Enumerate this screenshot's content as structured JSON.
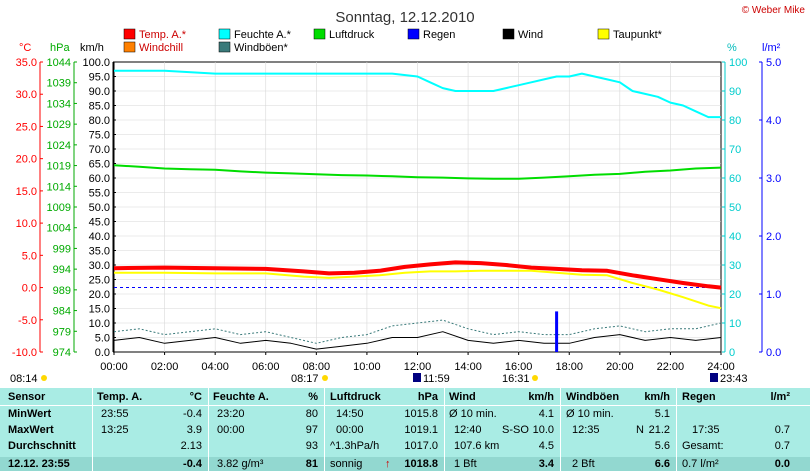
{
  "title": "Sonntag, 12.12.2010",
  "copyright": "© Weber Mike",
  "colors": {
    "temp": "#ff0000",
    "humidity": "#00ffff",
    "pressure": "#00dd00",
    "rain": "#0000ff",
    "wind": "#000000",
    "dewpoint": "#ffff00",
    "windchill": "#ff8000",
    "gust": "#3a7a7a",
    "table_bg": "#a9ece4",
    "plot_bg": "#ffffff",
    "sun": "#ffd800"
  },
  "legend": [
    {
      "key": "temp",
      "label": "Temp. A.*"
    },
    {
      "key": "humidity",
      "label": "Feuchte A.*"
    },
    {
      "key": "pressure",
      "label": "Luftdruck"
    },
    {
      "key": "rain",
      "label": "Regen"
    },
    {
      "key": "wind",
      "label": "Wind"
    },
    {
      "key": "dewpoint",
      "label": "Taupunkt*"
    },
    {
      "key": "windchill",
      "label": "Windchill"
    },
    {
      "key": "gust",
      "label": "Windböen*"
    }
  ],
  "axis_units": {
    "celsius": "°C",
    "hpa": "hPa",
    "kmh": "km/h",
    "percent": "%",
    "rain": "l/m²"
  },
  "sun_markers": {
    "sunrise_left": "08:14",
    "sunrise_axis": "08:17",
    "noon": "11:59",
    "sunset_axis": "16:31",
    "sunset_right": "23:43"
  },
  "chart_data": {
    "type": "line",
    "x_unit": "hours",
    "xlim": [
      0,
      24
    ],
    "x_ticks": [
      "00:00",
      "02:00",
      "04:00",
      "06:00",
      "08:00",
      "10:00",
      "12:00",
      "14:00",
      "16:00",
      "18:00",
      "20:00",
      "22:00",
      "24:00"
    ],
    "axes": {
      "celsius": {
        "ticks": [
          "35.0",
          "30.0",
          "25.0",
          "20.0",
          "15.0",
          "10.0",
          "5.0",
          "0.0",
          "-5.0",
          "-10.0"
        ],
        "ylim": [
          -10,
          35
        ]
      },
      "hpa": {
        "ticks": [
          "1044",
          "1039",
          "1034",
          "1029",
          "1024",
          "1019",
          "1014",
          "1009",
          "1004",
          "999",
          "994",
          "989",
          "984",
          "979",
          "974"
        ],
        "ylim": [
          974,
          1044
        ]
      },
      "kmh": {
        "ticks": [
          "100.0",
          "95.0",
          "90.0",
          "85.0",
          "80.0",
          "75.0",
          "70.0",
          "65.0",
          "60.0",
          "55.0",
          "50.0",
          "45.0",
          "40.0",
          "35.0",
          "30.0",
          "25.0",
          "20.0",
          "15.0",
          "10.0",
          "5.0",
          "0.0"
        ],
        "ylim": [
          0,
          100
        ]
      },
      "percent": {
        "ticks": [
          "100",
          "90",
          "80",
          "70",
          "60",
          "50",
          "40",
          "30",
          "20",
          "10",
          "0"
        ],
        "ylim": [
          0,
          100
        ]
      },
      "rain": {
        "ticks": [
          "5.0",
          "4.0",
          "3.0",
          "2.0",
          "1.0",
          "0.0"
        ],
        "ylim": [
          0,
          5
        ]
      }
    },
    "series": [
      {
        "key": "temp",
        "name": "Temp. A.*",
        "axis": "celsius",
        "x": [
          0,
          2,
          4,
          6,
          7.5,
          8.5,
          9.5,
          10.5,
          11.5,
          12.5,
          13.5,
          14.5,
          15.5,
          16.5,
          17.5,
          18.5,
          19.5,
          20.5,
          21.5,
          22.5,
          23.5,
          24
        ],
        "y": [
          3.0,
          3.1,
          3.0,
          2.9,
          2.5,
          2.2,
          2.3,
          2.6,
          3.2,
          3.6,
          3.9,
          3.8,
          3.5,
          3.1,
          2.9,
          2.7,
          2.6,
          1.9,
          1.3,
          0.7,
          0.2,
          0.0
        ]
      },
      {
        "key": "dewpoint",
        "name": "Taupunkt*",
        "axis": "celsius",
        "x": [
          0,
          2,
          4,
          6,
          7.5,
          8.5,
          9.5,
          10.5,
          11.5,
          12.5,
          13.5,
          14.5,
          15.5,
          16.5,
          17.5,
          18.5,
          19.5,
          20.5,
          21.5,
          22.5,
          23.5,
          24
        ],
        "y": [
          2.3,
          2.3,
          2.2,
          2.2,
          1.7,
          1.5,
          1.7,
          1.9,
          2.3,
          2.5,
          2.5,
          2.6,
          2.6,
          2.6,
          2.3,
          2.0,
          1.9,
          0.7,
          -0.3,
          -1.5,
          -2.8,
          -3.2
        ]
      },
      {
        "key": "humidity",
        "name": "Feuchte A.*",
        "axis": "percent",
        "x": [
          0,
          2,
          4,
          6,
          8,
          9,
          10,
          11,
          12,
          12.5,
          13,
          13.5,
          14,
          14.5,
          15,
          15.5,
          16,
          16.5,
          17,
          17.5,
          18,
          18.5,
          19,
          19.5,
          20,
          20.5,
          21,
          21.5,
          22,
          22.5,
          23,
          23.5,
          24
        ],
        "y": [
          97,
          97,
          96,
          96,
          96,
          96,
          96,
          96,
          95,
          93,
          91,
          90,
          90,
          90,
          90,
          91,
          92,
          93,
          94,
          95,
          95,
          96,
          95,
          94,
          93,
          90,
          89,
          88,
          86,
          85,
          83,
          81,
          81
        ]
      },
      {
        "key": "pressure",
        "name": "Luftdruck",
        "axis": "hpa",
        "x": [
          0,
          1,
          2,
          3,
          4,
          5,
          6,
          7,
          8,
          9,
          10,
          11,
          12,
          13,
          14,
          15,
          16,
          17,
          18,
          19,
          20,
          21,
          22,
          23,
          24
        ],
        "y": [
          1019.1,
          1018.7,
          1018.3,
          1018.1,
          1018.0,
          1017.6,
          1017.3,
          1017.1,
          1016.9,
          1016.7,
          1016.6,
          1016.4,
          1016.2,
          1016.1,
          1015.9,
          1015.8,
          1015.8,
          1016.1,
          1016.4,
          1016.8,
          1017.0,
          1017.5,
          1017.8,
          1018.3,
          1018.5
        ]
      },
      {
        "key": "wind",
        "name": "Wind",
        "axis": "kmh",
        "x": [
          0,
          1,
          2,
          3,
          4,
          5,
          6,
          7,
          8,
          9,
          10,
          11,
          12,
          13,
          14,
          15,
          16,
          17,
          18,
          19,
          20,
          21,
          22,
          23,
          24
        ],
        "y": [
          4,
          5,
          3,
          4,
          5,
          3,
          4,
          3,
          1,
          2,
          3,
          5,
          5,
          7,
          4,
          3,
          4,
          3,
          3,
          5,
          6,
          4,
          5,
          4,
          5
        ]
      },
      {
        "key": "gust",
        "name": "Windböen*",
        "axis": "kmh",
        "x": [
          0,
          1,
          2,
          3,
          4,
          5,
          6,
          7,
          8,
          9,
          10,
          11,
          12,
          13,
          14,
          15,
          16,
          17,
          18,
          19,
          20,
          21,
          22,
          23,
          24
        ],
        "y": [
          7,
          8,
          6,
          7,
          8,
          6,
          7,
          5,
          3,
          5,
          6,
          9,
          10,
          11,
          8,
          6,
          7,
          6,
          6,
          8,
          9,
          7,
          8,
          8,
          10
        ]
      },
      {
        "key": "rain",
        "name": "Regen",
        "axis": "rain",
        "type": "bar",
        "x": [
          17.5
        ],
        "y": [
          0.7
        ]
      }
    ],
    "reference_line": {
      "axis": "celsius",
      "value": 0
    }
  },
  "table": {
    "headers": {
      "sensor": "Sensor",
      "temp": "Temp. A.",
      "temp_unit": "°C",
      "hum": "Feuchte A.",
      "hum_unit": "%",
      "press": "Luftdruck",
      "press_unit": "hPa",
      "wind": "Wind",
      "wind_unit": "km/h",
      "gust": "Windböen",
      "gust_unit": "km/h",
      "rain": "Regen",
      "rain_unit": "l/m²"
    },
    "rows": [
      {
        "label": "MinWert",
        "temp_t": "23:55",
        "temp_v": "-0.4",
        "hum_t": "23:20",
        "hum_v": "80",
        "press_t": "14:50",
        "press_v": "1015.8",
        "wind_t": "Ø 10 min.",
        "wind_v": "4.1",
        "gust_t": "Ø 10 min.",
        "gust_v": "5.1",
        "rain_t": "",
        "rain_v": ""
      },
      {
        "label": "MaxWert",
        "temp_t": "13:25",
        "temp_v": "3.9",
        "hum_t": "00:00",
        "hum_v": "97",
        "press_t": "00:00",
        "press_v": "1019.1",
        "wind_t": "12:40",
        "wind_dir": "S-SO",
        "wind_v": "10.0",
        "gust_t": "12:35",
        "gust_dir": "N",
        "gust_v": "21.2",
        "rain_t": "17:35",
        "rain_v": "0.7"
      },
      {
        "label": "Durchschnitt",
        "temp_t": "",
        "temp_v": "2.13",
        "hum_t": "",
        "hum_v": "93",
        "press_t": "^1.3hPa/h",
        "press_v": "1017.0",
        "wind_t": "107.6 km",
        "wind_v": "4.5",
        "gust_t": "",
        "gust_v": "5.6",
        "rain_t": "Gesamt:",
        "rain_v": "0.7"
      }
    ],
    "current": {
      "label": "12.12. 23:55",
      "temp": "-0.4",
      "hum_t": "3.82 g/m³",
      "hum": "81",
      "press_t": "sonnig",
      "press_arrow": "↑",
      "press": "1018.8",
      "wind_t": "1 Bft",
      "wind": "3.4",
      "gust_t": "2 Bft",
      "gust": "6.6",
      "rain_t": "0.7 l/m²",
      "rain": "0.0"
    }
  }
}
